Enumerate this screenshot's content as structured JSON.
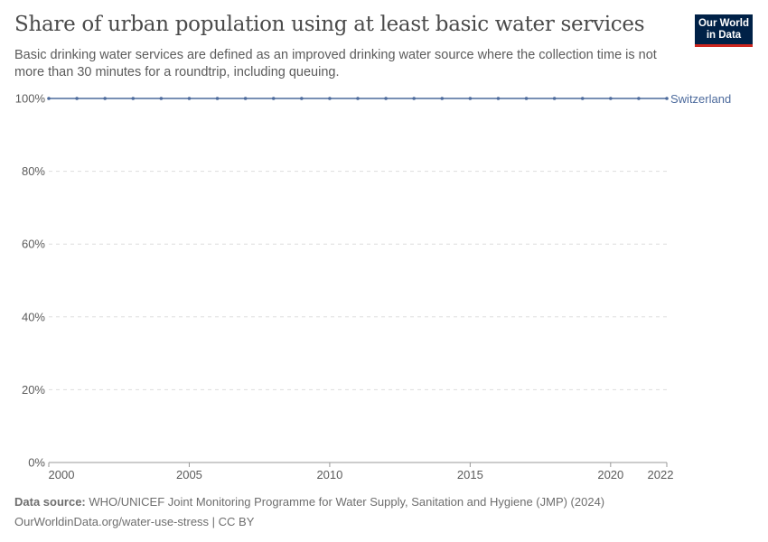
{
  "header": {
    "title": "Share of urban population using at least basic water services",
    "subtitle": "Basic drinking water services are defined as an improved drinking water source where the collection time is not more than 30 minutes for a roundtrip, including queuing.",
    "logo": "Our World in Data"
  },
  "chart_data": {
    "type": "line",
    "title": "Share of urban population using at least basic water services",
    "x": [
      2000,
      2001,
      2002,
      2003,
      2004,
      2005,
      2006,
      2007,
      2008,
      2009,
      2010,
      2011,
      2012,
      2013,
      2014,
      2015,
      2016,
      2017,
      2018,
      2019,
      2020,
      2021,
      2022
    ],
    "series": [
      {
        "name": "Switzerland",
        "color": "#4c6a9c",
        "values": [
          100,
          100,
          100,
          100,
          100,
          100,
          100,
          100,
          100,
          100,
          100,
          100,
          100,
          100,
          100,
          100,
          100,
          100,
          100,
          100,
          100,
          100,
          100
        ]
      }
    ],
    "xlim": [
      2000,
      2022
    ],
    "ylim": [
      0,
      100
    ],
    "xticks": [
      2000,
      2005,
      2010,
      2015,
      2020,
      2022
    ],
    "yticks": [
      0,
      20,
      40,
      60,
      80,
      100
    ],
    "ytick_labels": [
      "0%",
      "20%",
      "40%",
      "60%",
      "80%",
      "100%"
    ],
    "grid": "horizontal dashed",
    "legend": "right end label"
  },
  "footer": {
    "source_label": "Data source:",
    "source": "WHO/UNICEF Joint Monitoring Programme for Water Supply, Sanitation and Hygiene (JMP) (2024)",
    "url": "OurWorldinData.org/water-use-stress | CC BY"
  }
}
